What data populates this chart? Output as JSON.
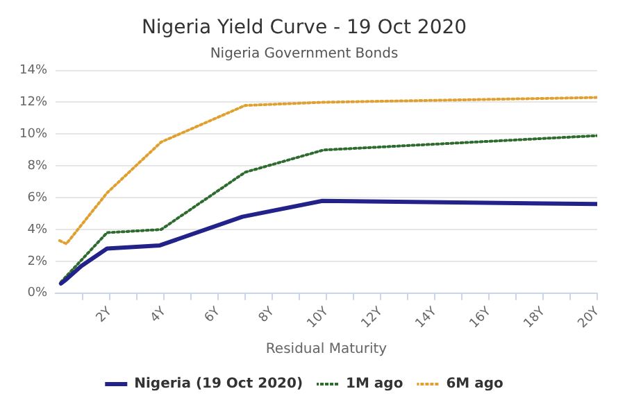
{
  "chart_data": {
    "type": "line",
    "title": "Nigeria Yield Curve - 19 Oct 2020",
    "subtitle": "Nigeria Government Bonds",
    "xlabel": "Residual Maturity",
    "series": [
      {
        "name": "Nigeria (19 Oct 2020)",
        "color": "#22228a",
        "line_style": "solid",
        "x": [
          0.2,
          0.35,
          0.95,
          1.9,
          3.85,
          6.9,
          9.85,
          20
        ],
        "values": [
          0.6,
          0.8,
          1.7,
          2.8,
          3.0,
          4.8,
          5.8,
          5.6
        ]
      },
      {
        "name": "1M ago",
        "color": "#2e6b2e",
        "line_style": "dotted",
        "x": [
          0.2,
          1.9,
          3.9,
          7,
          9.9,
          20
        ],
        "values": [
          0.7,
          3.8,
          4.0,
          7.6,
          9.0,
          9.9
        ]
      },
      {
        "name": "6M ago",
        "color": "#e0a030",
        "line_style": "dotted",
        "x": [
          0.15,
          0.4,
          1.9,
          3.9,
          7,
          9.9,
          20
        ],
        "values": [
          3.3,
          3.1,
          6.3,
          9.5,
          11.8,
          12.0,
          12.3
        ]
      }
    ],
    "xlim": [
      0,
      20
    ],
    "xticks": [
      {
        "value": 1,
        "label": null
      },
      {
        "value": 2,
        "label": "2Y"
      },
      {
        "value": 3,
        "label": null
      },
      {
        "value": 4,
        "label": "4Y"
      },
      {
        "value": 5,
        "label": null
      },
      {
        "value": 6,
        "label": "6Y"
      },
      {
        "value": 7,
        "label": null
      },
      {
        "value": 8,
        "label": "8Y"
      },
      {
        "value": 9,
        "label": null
      },
      {
        "value": 10,
        "label": "10Y"
      },
      {
        "value": 11,
        "label": null
      },
      {
        "value": 12,
        "label": "12Y"
      },
      {
        "value": 13,
        "label": null
      },
      {
        "value": 14,
        "label": "14Y"
      },
      {
        "value": 15,
        "label": null
      },
      {
        "value": 16,
        "label": "16Y"
      },
      {
        "value": 17,
        "label": null
      },
      {
        "value": 18,
        "label": "18Y"
      },
      {
        "value": 19,
        "label": null
      },
      {
        "value": 20,
        "label": "20Y"
      }
    ],
    "ylim": [
      0,
      14
    ],
    "yticks": [
      {
        "value": 0,
        "label": "0%"
      },
      {
        "value": 2,
        "label": "2%"
      },
      {
        "value": 4,
        "label": "4%"
      },
      {
        "value": 6,
        "label": "6%"
      },
      {
        "value": 8,
        "label": "8%"
      },
      {
        "value": 10,
        "label": "10%"
      },
      {
        "value": 12,
        "label": "12%"
      },
      {
        "value": 14,
        "label": "14%"
      }
    ],
    "grid": "y",
    "legend": "bottom",
    "marker": "none"
  }
}
